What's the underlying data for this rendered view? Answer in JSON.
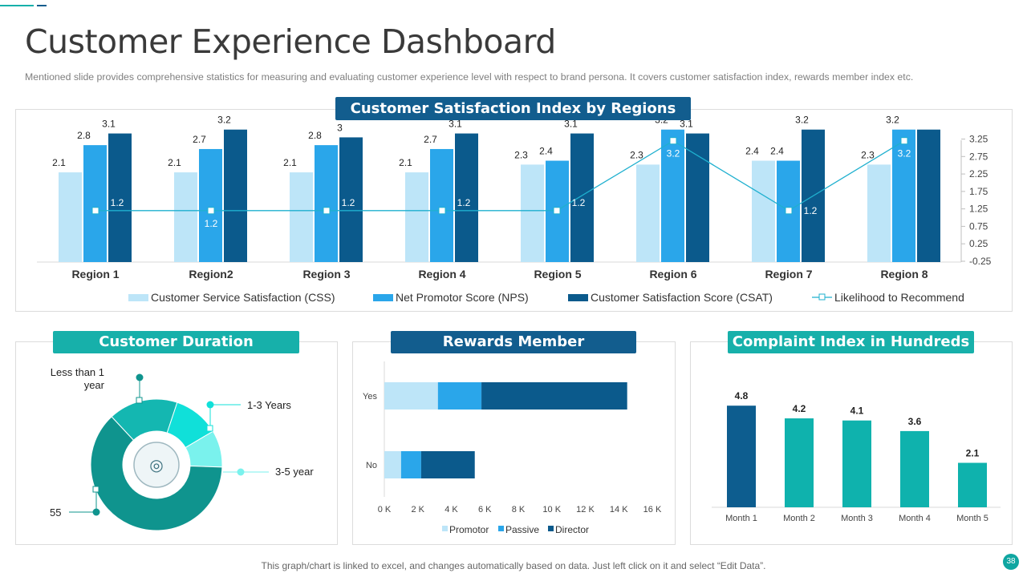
{
  "page": {
    "title": "Customer Experience Dashboard",
    "subtitle": "Mentioned slide provides  comprehensive  statistics for measuring and evaluating  customer experience  level  with respect to brand  persona.  It covers  customer satisfaction index, rewards  member index etc.",
    "footer": "This graph/chart is linked to excel,  and changes automatically based on data. Just left click on it and select “Edit Data”.",
    "page_number": "38"
  },
  "colors": {
    "css": "#bde5f8",
    "nps": "#2aa6ea",
    "csat": "#0b5a8c",
    "line": "#1fb0cf",
    "teal": "#0fb2ad",
    "navy": "#0d5d8f",
    "header_teal": "#17b0aa",
    "header_navy": "#125d8e",
    "donut_1": "#0f948e",
    "donut_2": "#14b7b1",
    "donut_3": "#10e0d9",
    "donut_4": "#7af2ed"
  },
  "panels": {
    "satisfaction_header": "Customer Satisfaction Index by Regions",
    "duration_header": "Customer Duration",
    "rewards_header": "Rewards Member",
    "complaint_header": "Complaint Index in Hundreds"
  },
  "chart_data": [
    {
      "id": "satisfaction",
      "type": "bar",
      "title": "Customer Satisfaction Index by Regions",
      "categories": [
        "Region 1",
        "Region2",
        "Region 3",
        "Region 4",
        "Region 5",
        "Region 6",
        "Region 7",
        "Region 8"
      ],
      "series": [
        {
          "name": "Customer Service Satisfaction (CSS)",
          "type": "bar",
          "values": [
            2.1,
            2.1,
            2.1,
            2.1,
            2.3,
            2.3,
            2.4,
            2.3
          ]
        },
        {
          "name": "Net Promotor Score (NPS)",
          "type": "bar",
          "values": [
            2.8,
            2.7,
            2.8,
            2.7,
            2.4,
            3.2,
            2.4,
            3.2
          ]
        },
        {
          "name": "Customer Satisfaction Score (CSAT)",
          "type": "bar",
          "values": [
            3.1,
            3.2,
            3,
            3.1,
            3.1,
            3.1,
            3.2,
            3.2
          ]
        },
        {
          "name": "Likelihood to Recommend",
          "type": "line",
          "values": [
            1.2,
            1.2,
            1.2,
            1.2,
            1.2,
            3.2,
            1.2,
            3.2
          ]
        }
      ],
      "value_labels": {
        "css": [
          "2.1",
          "2.1",
          "2.1",
          "2.1",
          "2.3",
          "2.3",
          "2.4",
          "2.3"
        ],
        "nps": [
          "2.8",
          "2.7",
          "2.8",
          "2.7",
          "2.4",
          "3.2",
          "2.4",
          "3.2"
        ],
        "csat": [
          "3.1",
          "3.2",
          "3",
          "3.1",
          "3.1",
          "3.1",
          "3.2",
          ""
        ],
        "line": [
          "1.2",
          "1.2",
          "1.2",
          "1.2",
          "1.2",
          "3.2",
          "1.2",
          "3.2"
        ]
      },
      "secondary_axis": {
        "ticks": [
          3.25,
          2.75,
          2.25,
          1.75,
          1.25,
          0.75,
          0.25,
          -0.25
        ],
        "tick_labels": [
          "3.25",
          "2.75",
          "2.25",
          "1.75",
          "1.25",
          "0.75",
          "0.25",
          "-0.25"
        ],
        "ylim": [
          -0.25,
          3.4
        ]
      },
      "ylim": [
        0,
        3.4
      ],
      "legend_position": "bottom"
    },
    {
      "id": "duration",
      "type": "pie",
      "title": "Customer Duration",
      "segments": [
        {
          "label": "55",
          "value": 55
        },
        {
          "label": "Less than 1 year",
          "value": 15
        },
        {
          "label": "1-3 Years",
          "value": 10
        },
        {
          "label": "3-5 year",
          "value": 8
        }
      ],
      "value_label": "55"
    },
    {
      "id": "rewards",
      "type": "bar",
      "orientation": "horizontal",
      "stacked": true,
      "title": "Rewards Member",
      "categories": [
        "Yes",
        "No"
      ],
      "series": [
        {
          "name": "Promotor",
          "values": [
            3200,
            1000
          ]
        },
        {
          "name": "Passive",
          "values": [
            2600,
            1200
          ]
        },
        {
          "name": "Director",
          "values": [
            8700,
            3200
          ]
        }
      ],
      "xlim": [
        0,
        16000
      ],
      "x_ticks": [
        0,
        2000,
        4000,
        6000,
        8000,
        10000,
        12000,
        14000,
        16000
      ],
      "x_tick_labels": [
        "0 K",
        "2 K",
        "4 K",
        "6 K",
        "8 K",
        "10 K",
        "12 K",
        "14 K",
        "16 K"
      ],
      "legend_position": "bottom"
    },
    {
      "id": "complaint",
      "type": "bar",
      "title": "Complaint Index in Hundreds",
      "categories": [
        "Month 1",
        "Month 2",
        "Month 3",
        "Month 4",
        "Month 5"
      ],
      "values": [
        4.8,
        4.2,
        4.1,
        3.6,
        2.1
      ],
      "value_labels": [
        "4.8",
        "4.2",
        "4.1",
        "3.6",
        "2.1"
      ],
      "ylim": [
        0,
        5.3
      ]
    }
  ]
}
